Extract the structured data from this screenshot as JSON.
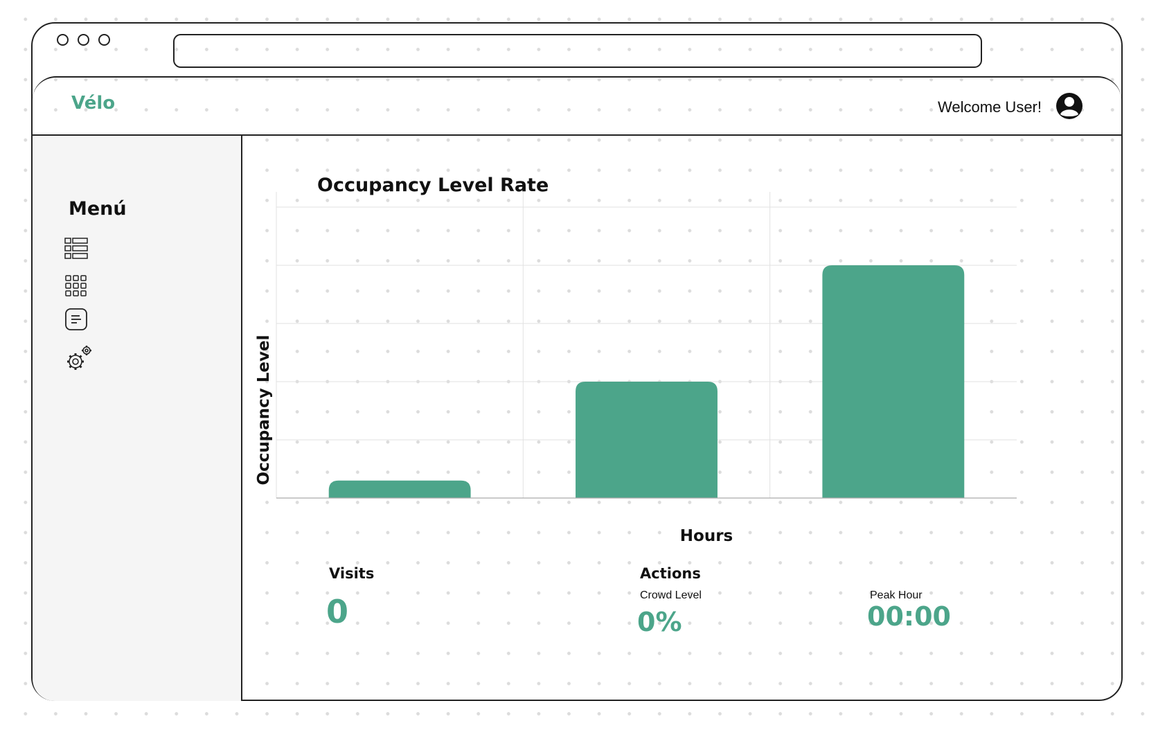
{
  "browser": {
    "url": ""
  },
  "header": {
    "logo": "Vélo",
    "welcome": "Welcome User!"
  },
  "sidebar": {
    "title": "Menú",
    "items": [
      {
        "icon": "list-view-icon"
      },
      {
        "icon": "grid-view-icon"
      },
      {
        "icon": "notes-icon"
      },
      {
        "icon": "settings-gears-icon"
      }
    ]
  },
  "chart_data": {
    "type": "bar",
    "title": "Occupancy Level Rate",
    "xlabel": "Hours",
    "ylabel": "Occupancy Level",
    "categories": [
      "",
      "",
      ""
    ],
    "values": [
      0.6,
      4.0,
      8.0
    ],
    "ylim": [
      0,
      10
    ],
    "grid": true,
    "bar_color": "#4ca58a"
  },
  "stats": {
    "visits": {
      "title": "Visits",
      "value": "0"
    },
    "actions": {
      "title": "Actions",
      "crowd_level": {
        "label": "Crowd Level",
        "value": "0%"
      },
      "peak_hour": {
        "label": "Peak Hour",
        "value": "00:00"
      }
    }
  },
  "colors": {
    "accent": "#4ca58a",
    "sidebar_bg": "#f5f5f5",
    "border": "#222222"
  }
}
